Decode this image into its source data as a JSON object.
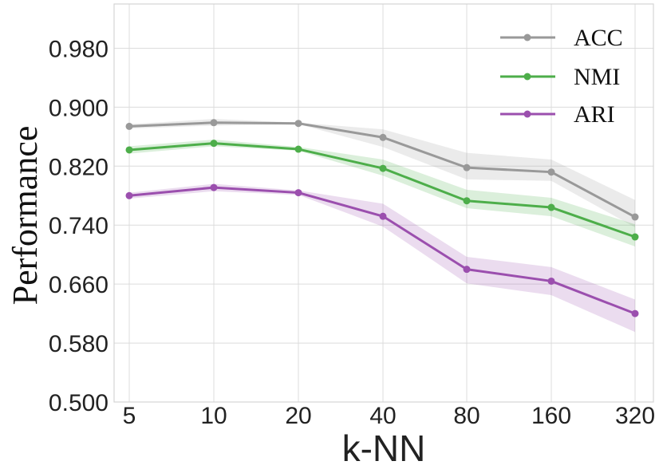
{
  "chart_data": {
    "type": "line",
    "title": "",
    "xlabel": "k-NN",
    "ylabel": "Performance",
    "categories": [
      "5",
      "10",
      "20",
      "40",
      "80",
      "160",
      "320"
    ],
    "ylim": [
      0.5,
      1.04
    ],
    "yticks": [
      "0.500",
      "0.580",
      "0.660",
      "0.740",
      "0.820",
      "0.900",
      "0.980"
    ],
    "grid": true,
    "legend_position": "top-right",
    "series": [
      {
        "name": "ACC",
        "color": "#999999",
        "values": [
          0.874,
          0.879,
          0.878,
          0.859,
          0.818,
          0.812,
          0.751
        ],
        "lower": [
          0.871,
          0.875,
          0.877,
          0.846,
          0.802,
          0.8,
          0.737
        ],
        "upper": [
          0.877,
          0.884,
          0.879,
          0.87,
          0.838,
          0.829,
          0.774
        ]
      },
      {
        "name": "NMI",
        "color": "#4dae4a",
        "values": [
          0.842,
          0.851,
          0.843,
          0.817,
          0.773,
          0.764,
          0.724
        ],
        "lower": [
          0.837,
          0.847,
          0.841,
          0.807,
          0.763,
          0.752,
          0.711
        ],
        "upper": [
          0.847,
          0.856,
          0.846,
          0.829,
          0.788,
          0.777,
          0.741
        ]
      },
      {
        "name": "ARI",
        "color": "#9b4fae",
        "values": [
          0.78,
          0.791,
          0.784,
          0.752,
          0.68,
          0.664,
          0.62
        ],
        "lower": [
          0.776,
          0.786,
          0.781,
          0.738,
          0.661,
          0.645,
          0.595
        ],
        "upper": [
          0.784,
          0.796,
          0.787,
          0.769,
          0.697,
          0.683,
          0.639
        ]
      }
    ]
  }
}
